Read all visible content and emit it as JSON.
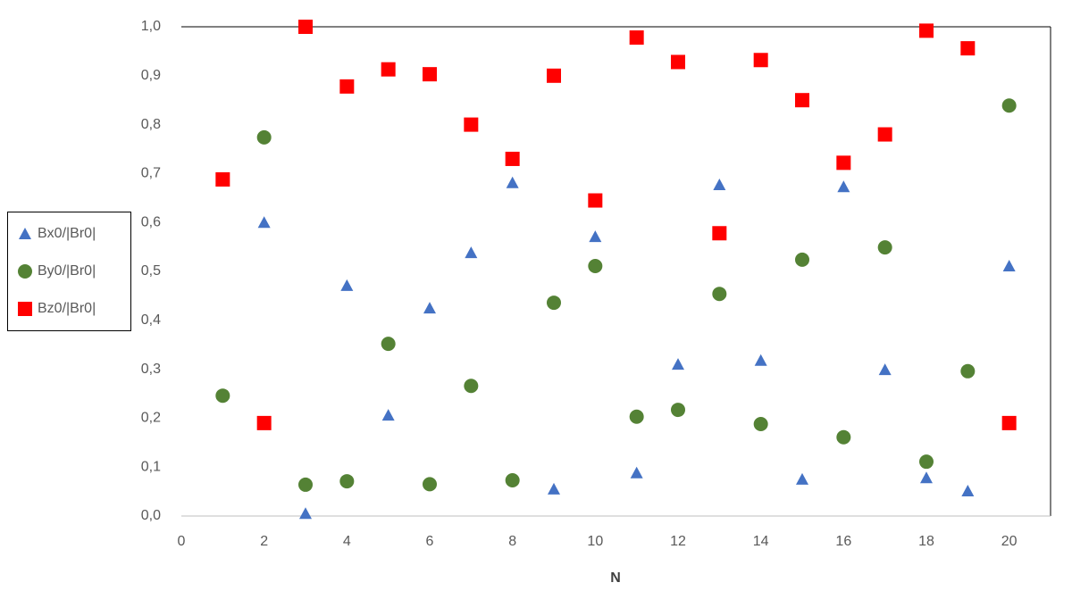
{
  "chart_data": {
    "type": "scatter",
    "x_label": "N",
    "xlim": [
      0,
      21
    ],
    "xticks": [
      0,
      2,
      4,
      6,
      8,
      10,
      12,
      14,
      16,
      18,
      20
    ],
    "ylim": [
      0,
      1
    ],
    "yticks": [
      {
        "value": 0,
        "label": "0,0"
      },
      {
        "value": 0.1,
        "label": "0,1"
      },
      {
        "value": 0.2,
        "label": "0,2"
      },
      {
        "value": 0.3,
        "label": "0,3"
      },
      {
        "value": 0.4,
        "label": "0,4"
      },
      {
        "value": 0.5,
        "label": "0,5"
      },
      {
        "value": 0.6,
        "label": "0,6"
      },
      {
        "value": 0.7,
        "label": "0,7"
      },
      {
        "value": 0.8,
        "label": "0,8"
      },
      {
        "value": 0.9,
        "label": "0,9"
      },
      {
        "value": 1,
        "label": "1,0"
      }
    ],
    "grid": false,
    "legend": "left",
    "series": [
      {
        "name": "Bx0/|Br0|",
        "color": "#4472c4",
        "marker": "triangle",
        "x": [
          2,
          3,
          4,
          5,
          6,
          7,
          8,
          9,
          10,
          11,
          12,
          13,
          14,
          15,
          16,
          17,
          18,
          19,
          20
        ],
        "values": [
          0.6,
          0.005,
          0.471,
          0.206,
          0.425,
          0.538,
          0.681,
          0.055,
          0.571,
          0.088,
          0.31,
          0.677,
          0.318,
          0.075,
          0.673,
          0.299,
          0.078,
          0.051,
          0.511
        ]
      },
      {
        "name": "By0/|Br0|",
        "color": "#548235",
        "marker": "circle",
        "x": [
          1,
          2,
          3,
          4,
          5,
          6,
          7,
          8,
          9,
          10,
          11,
          12,
          13,
          14,
          15,
          16,
          17,
          18,
          19,
          20
        ],
        "values": [
          0.246,
          0.774,
          0.064,
          0.071,
          0.352,
          0.065,
          0.266,
          0.073,
          0.436,
          0.511,
          0.203,
          0.217,
          0.454,
          0.188,
          0.524,
          0.161,
          0.549,
          0.111,
          0.296,
          0.839
        ]
      },
      {
        "name": "Bz0/|Br0|",
        "color": "#ff0000",
        "marker": "square",
        "x": [
          1,
          2,
          3,
          4,
          5,
          6,
          7,
          8,
          9,
          10,
          11,
          12,
          13,
          14,
          15,
          16,
          17,
          18,
          19,
          20
        ],
        "values": [
          0.688,
          0.19,
          1.0,
          0.878,
          0.913,
          0.903,
          0.8,
          0.73,
          0.9,
          0.645,
          0.978,
          0.928,
          0.578,
          0.932,
          0.85,
          0.722,
          0.78,
          0.992,
          0.956,
          0.19
        ]
      }
    ]
  }
}
